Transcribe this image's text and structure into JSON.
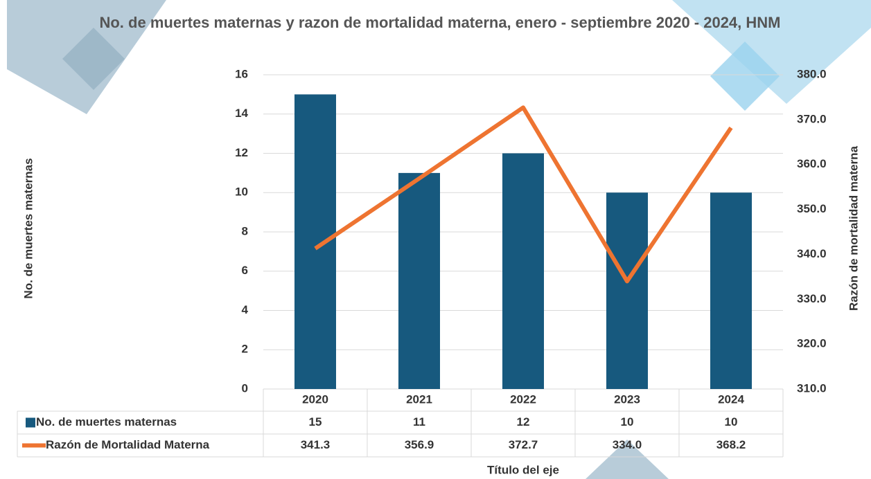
{
  "chart_data": {
    "type": "bar_line",
    "title": "No. de muertes maternas y razon de mortalidad materna, enero - septiembre 2020 - 2024, HNM",
    "x_label": "Título del eje",
    "y_label": "No. de muertes maternas",
    "y2_label": "Razón de mortalidad materna",
    "categories": [
      "2020",
      "2021",
      "2022",
      "2023",
      "2024"
    ],
    "series": [
      {
        "name": "No. de muertes maternas",
        "type": "bar",
        "color": "#17597e",
        "values": [
          15,
          11,
          12,
          10,
          10
        ]
      },
      {
        "name": "Razón de Mortalidad Materna",
        "type": "line",
        "axis": "y2",
        "color": "#ee7431",
        "values": [
          341.3,
          356.9,
          372.7,
          334,
          368.2
        ],
        "value_labels": [
          "341.3",
          "356.9",
          "372.7",
          "334.0",
          "368.2"
        ]
      }
    ],
    "ylim": [
      0,
      16
    ],
    "yticks": [
      0,
      2,
      4,
      6,
      8,
      10,
      12,
      14,
      16
    ],
    "y2lim": [
      310,
      380
    ],
    "y2ticks": [
      {
        "value": 310,
        "label": "310.0"
      },
      {
        "value": 320,
        "label": "320.0"
      },
      {
        "value": 330,
        "label": "330.0"
      },
      {
        "value": 340,
        "label": "340.0"
      },
      {
        "value": 350,
        "label": "350.0"
      },
      {
        "value": 360,
        "label": "360.0"
      },
      {
        "value": 370,
        "label": "370.0"
      },
      {
        "value": 380,
        "label": "380.0"
      }
    ],
    "grid": true,
    "data_table": true
  }
}
